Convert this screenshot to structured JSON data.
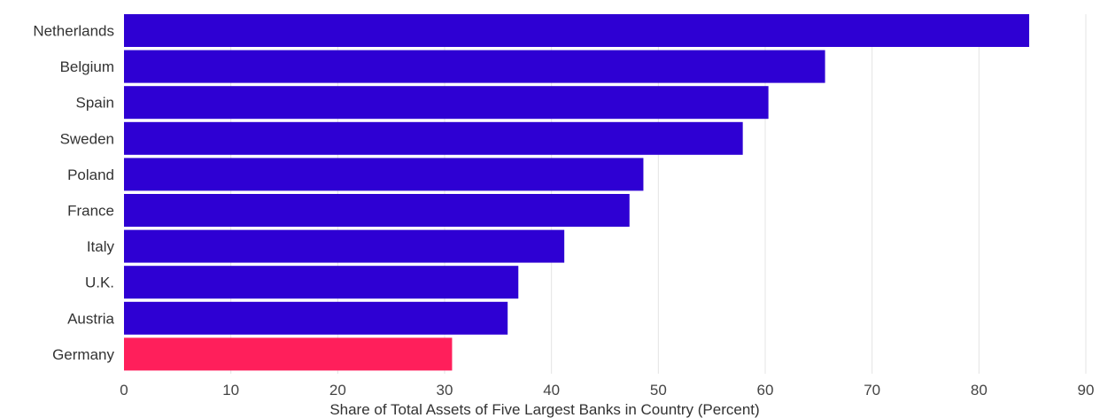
{
  "chart_data": {
    "type": "bar",
    "orientation": "horizontal",
    "categories": [
      "Netherlands",
      "Belgium",
      "Spain",
      "Sweden",
      "Poland",
      "France",
      "Italy",
      "U.K.",
      "Austria",
      "Germany"
    ],
    "values": [
      84.7,
      65.6,
      60.3,
      57.9,
      48.6,
      47.3,
      41.2,
      36.9,
      35.9,
      30.7
    ],
    "highlight": "Germany",
    "xlabel": "Share of Total Assets of Five Largest Banks in Country (Percent)",
    "ylabel": "",
    "title": "",
    "xlim": [
      0,
      90
    ],
    "xticks": [
      0,
      10,
      20,
      30,
      40,
      50,
      60,
      70,
      80,
      90
    ],
    "grid": true,
    "legend": "none",
    "colors": {
      "bar": "#2e00d3",
      "highlight": "#ff1f5b",
      "grid": "#e4e4e4"
    }
  }
}
